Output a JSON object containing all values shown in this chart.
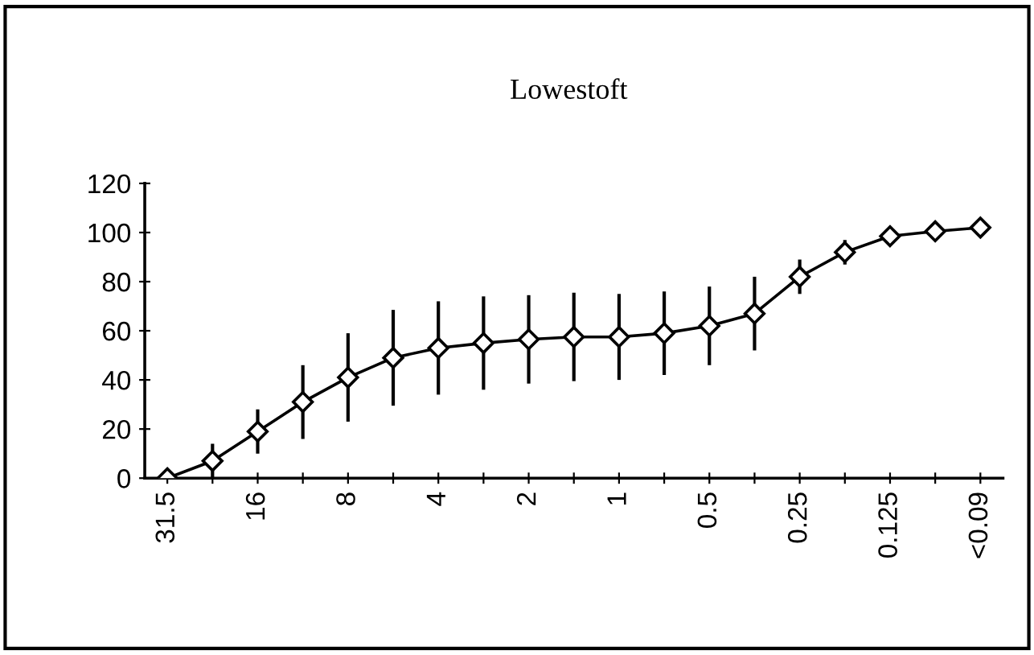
{
  "chart_data": {
    "type": "line",
    "title": "Lowestoft",
    "categories": [
      "31.5",
      null,
      "16",
      null,
      "8",
      null,
      "4",
      null,
      "2",
      null,
      "1",
      null,
      "0.5",
      null,
      "0.25",
      null,
      "0.125",
      null,
      "<0.09"
    ],
    "series": [
      {
        "color": "#000000",
        "values": [
          0,
          7,
          19,
          31,
          41,
          49,
          53,
          55,
          56.5,
          57.5,
          57.5,
          59,
          62,
          67,
          82,
          92,
          98.5,
          100.5,
          102
        ],
        "errors": [
          null,
          7,
          9,
          15,
          18,
          19.5,
          19,
          19,
          18,
          18,
          17.5,
          17,
          16,
          15,
          7,
          5,
          null,
          null,
          null
        ]
      }
    ],
    "ylim": [
      0,
      120
    ],
    "yticks": [
      0,
      20,
      40,
      60,
      80,
      100,
      120
    ],
    "marker": "diamond",
    "line_style": "solid",
    "grid": false,
    "legend": false
  }
}
